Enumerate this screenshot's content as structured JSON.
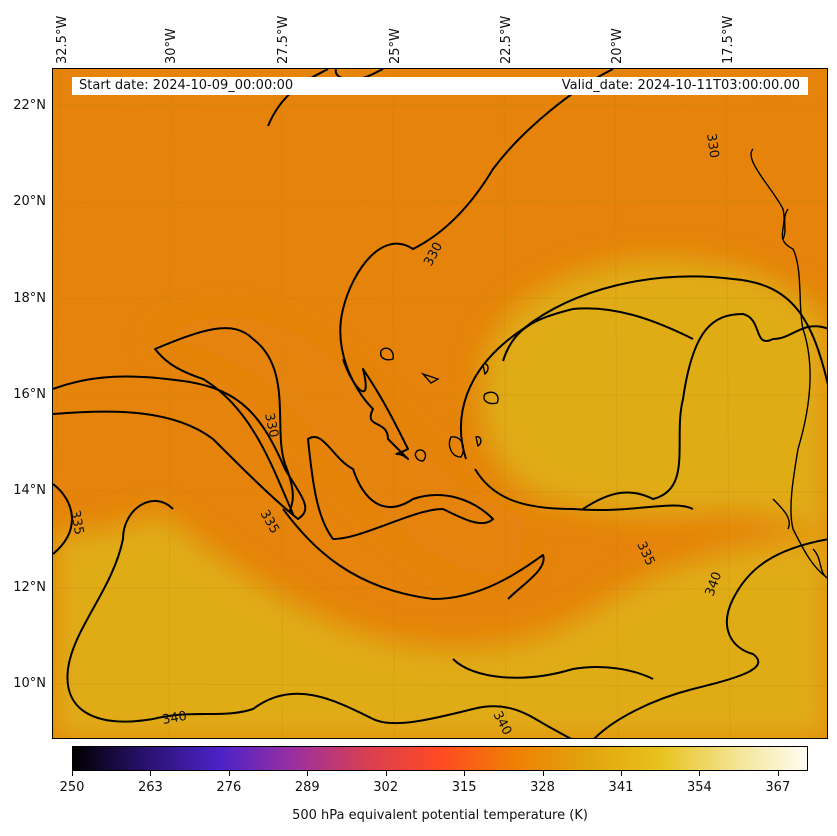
{
  "info": {
    "start_label": "Start date: 2024-10-09_00:00:00",
    "valid_label": "Valid_date: 2024-10-11T03:00:00.00"
  },
  "axes": {
    "lon_labels": [
      "32.5°W",
      "30°W",
      "27.5°W",
      "25°W",
      "22.5°W",
      "20°W",
      "17.5°W"
    ],
    "lat_labels": [
      "22°N",
      "20°N",
      "18°N",
      "16°N",
      "14°N",
      "12°N",
      "10°N"
    ]
  },
  "contours": {
    "levels": [
      330,
      335,
      340
    ],
    "labels": [
      "330",
      "330",
      "330",
      "335",
      "335",
      "335",
      "340",
      "340",
      "340"
    ]
  },
  "colorbar": {
    "title": "500 hPa equivalent potential temperature (K)",
    "min": 250,
    "max": 372,
    "ticks": [
      "250",
      "263",
      "276",
      "289",
      "302",
      "315",
      "328",
      "341",
      "354",
      "367"
    ],
    "colors": [
      "#000000",
      "#2a1270",
      "#4b22c8",
      "#9b2fa0",
      "#d83e52",
      "#ff4a22",
      "#f07f05",
      "#e2a40c",
      "#e8c21e",
      "#f3e38f",
      "#fffdf2"
    ]
  },
  "field": {
    "cool_color": "#e5830a",
    "warm_color": "#e0ac17",
    "contour_color": "#000000"
  }
}
